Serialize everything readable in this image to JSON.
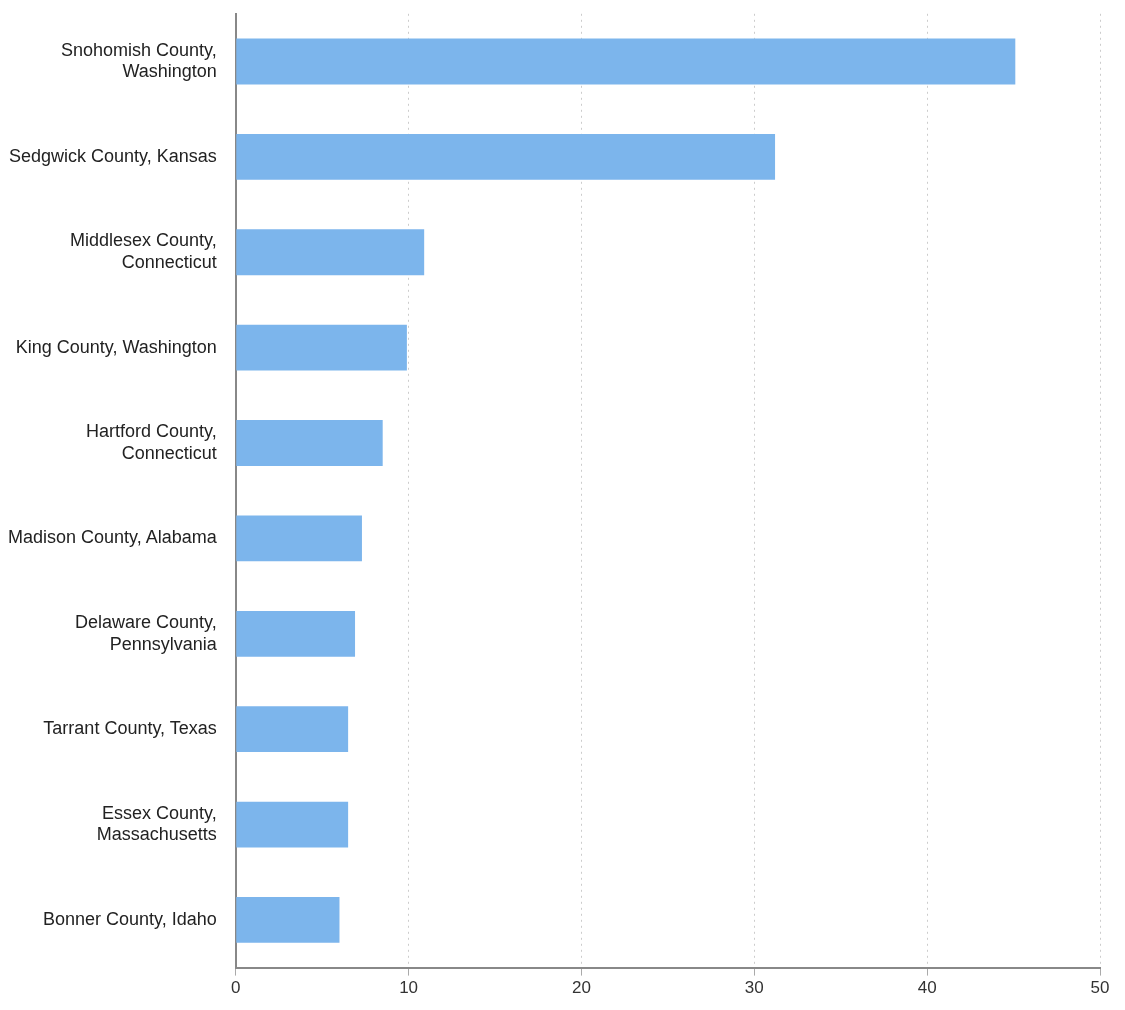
{
  "chart_data": {
    "type": "bar",
    "orientation": "horizontal",
    "categories": [
      "Snohomish County, Washington",
      "Sedgwick County, Kansas",
      "Middlesex County, Connecticut",
      "King County, Washington",
      "Hartford County, Connecticut",
      "Madison County, Alabama",
      "Delaware County, Pennsylvania",
      "Tarrant County, Texas",
      "Essex County, Massachusetts",
      "Bonner County, Idaho"
    ],
    "values": [
      45.1,
      31.2,
      10.9,
      9.9,
      8.5,
      7.3,
      6.9,
      6.5,
      6.5,
      6.0
    ],
    "color": "#7cb5ec",
    "xlim": [
      0,
      50
    ],
    "xticks": [
      0,
      10,
      20,
      30,
      40,
      50
    ],
    "grid": "x"
  }
}
